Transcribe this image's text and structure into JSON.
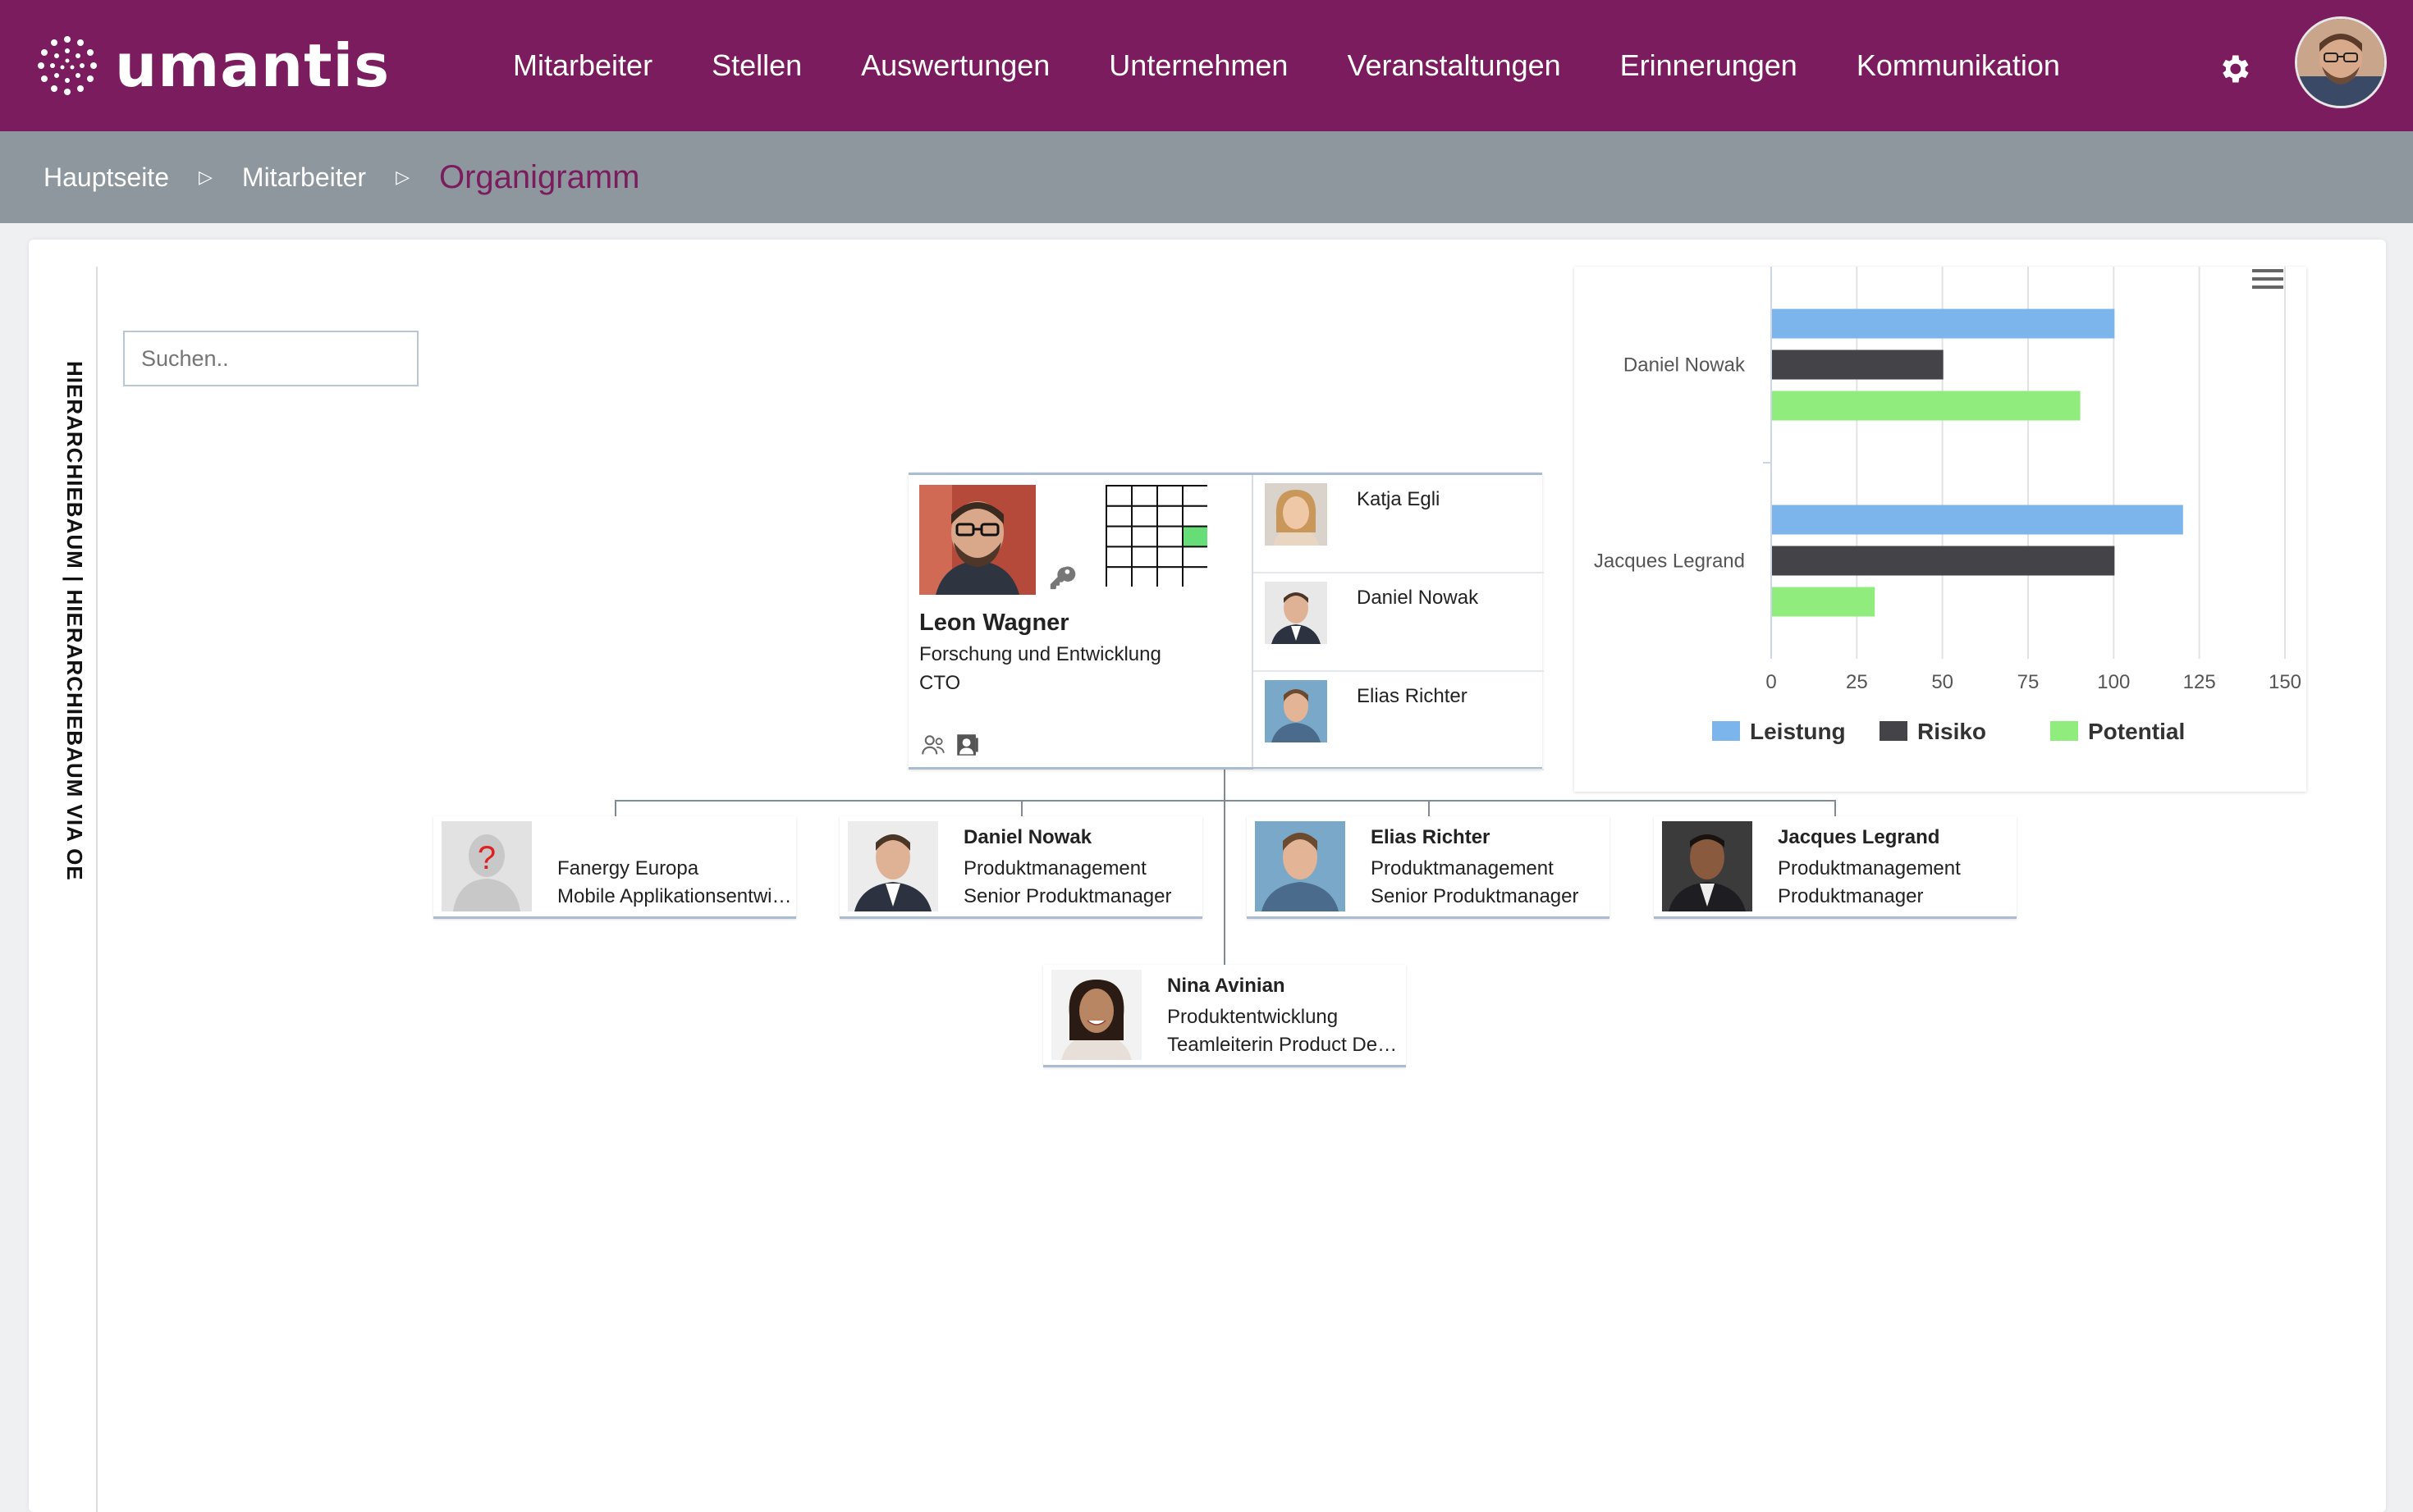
{
  "app": {
    "logo_text": "umantis"
  },
  "nav": {
    "items": [
      {
        "label": "Mitarbeiter"
      },
      {
        "label": "Stellen"
      },
      {
        "label": "Auswertungen"
      },
      {
        "label": "Unternehmen"
      },
      {
        "label": "Veranstaltungen"
      },
      {
        "label": "Erinnerungen"
      },
      {
        "label": "Kommunikation"
      }
    ],
    "settings_icon": "gear-icon",
    "avatar_icon": "user-avatar"
  },
  "breadcrumb": {
    "items": [
      "Hauptseite",
      "Mitarbeiter"
    ],
    "separator": "▷",
    "current": "Organigramm"
  },
  "sidebar": {
    "vertical_tab": "HIERARCHIEBAUM | HIERARCHIEBAUM VIA OE"
  },
  "search": {
    "placeholder": "Suchen.."
  },
  "colors": {
    "brand": "#7b1c5e",
    "crumbbar": "#8d979d",
    "grid_highlight": "#66dd77"
  },
  "org": {
    "main": {
      "name": "Leon Wagner",
      "department": "Forschung und Entwicklung",
      "title": "CTO",
      "nine_box": {
        "rows": 5,
        "cols": 4,
        "highlight_row": 2,
        "highlight_col": 3
      },
      "subordinates": [
        {
          "name": "Katja Egli"
        },
        {
          "name": "Daniel Nowak"
        },
        {
          "name": "Elias Richter"
        }
      ]
    },
    "children": [
      {
        "name": "",
        "line1": "Fanergy Europa",
        "line2": "Mobile Applikationsentwicklung",
        "photo": "placeholder-question"
      },
      {
        "name": "Daniel Nowak",
        "line1": "Produktmanagement",
        "line2": "Senior Produktmanager",
        "photo": "man-suit"
      },
      {
        "name": "Elias Richter",
        "line1": "Produktmanagement",
        "line2": "Senior Produktmanager",
        "photo": "man-smile"
      },
      {
        "name": "Jacques Legrand",
        "line1": "Produktmanagement",
        "line2": "Produktmanager",
        "photo": "man-dark"
      }
    ],
    "assistant": {
      "name": "Nina Avinian",
      "line1": "Produktentwicklung",
      "line2": "Teamleiterin Product Development",
      "photo": "woman-smile"
    }
  },
  "chart_data": {
    "type": "bar",
    "orientation": "horizontal",
    "categories": [
      "Daniel Nowak",
      "Jacques Legrand"
    ],
    "series": [
      {
        "name": "Leistung",
        "color": "#7cb5ec",
        "values": [
          100,
          120
        ]
      },
      {
        "name": "Risiko",
        "color": "#434348",
        "values": [
          50,
          100
        ]
      },
      {
        "name": "Potential",
        "color": "#90ed7d",
        "values": [
          90,
          30
        ]
      }
    ],
    "xlim": [
      0,
      150
    ],
    "ticks": [
      "0",
      "25",
      "50",
      "75",
      "100",
      "125",
      "150"
    ],
    "grid": true,
    "legend": "bottom"
  }
}
